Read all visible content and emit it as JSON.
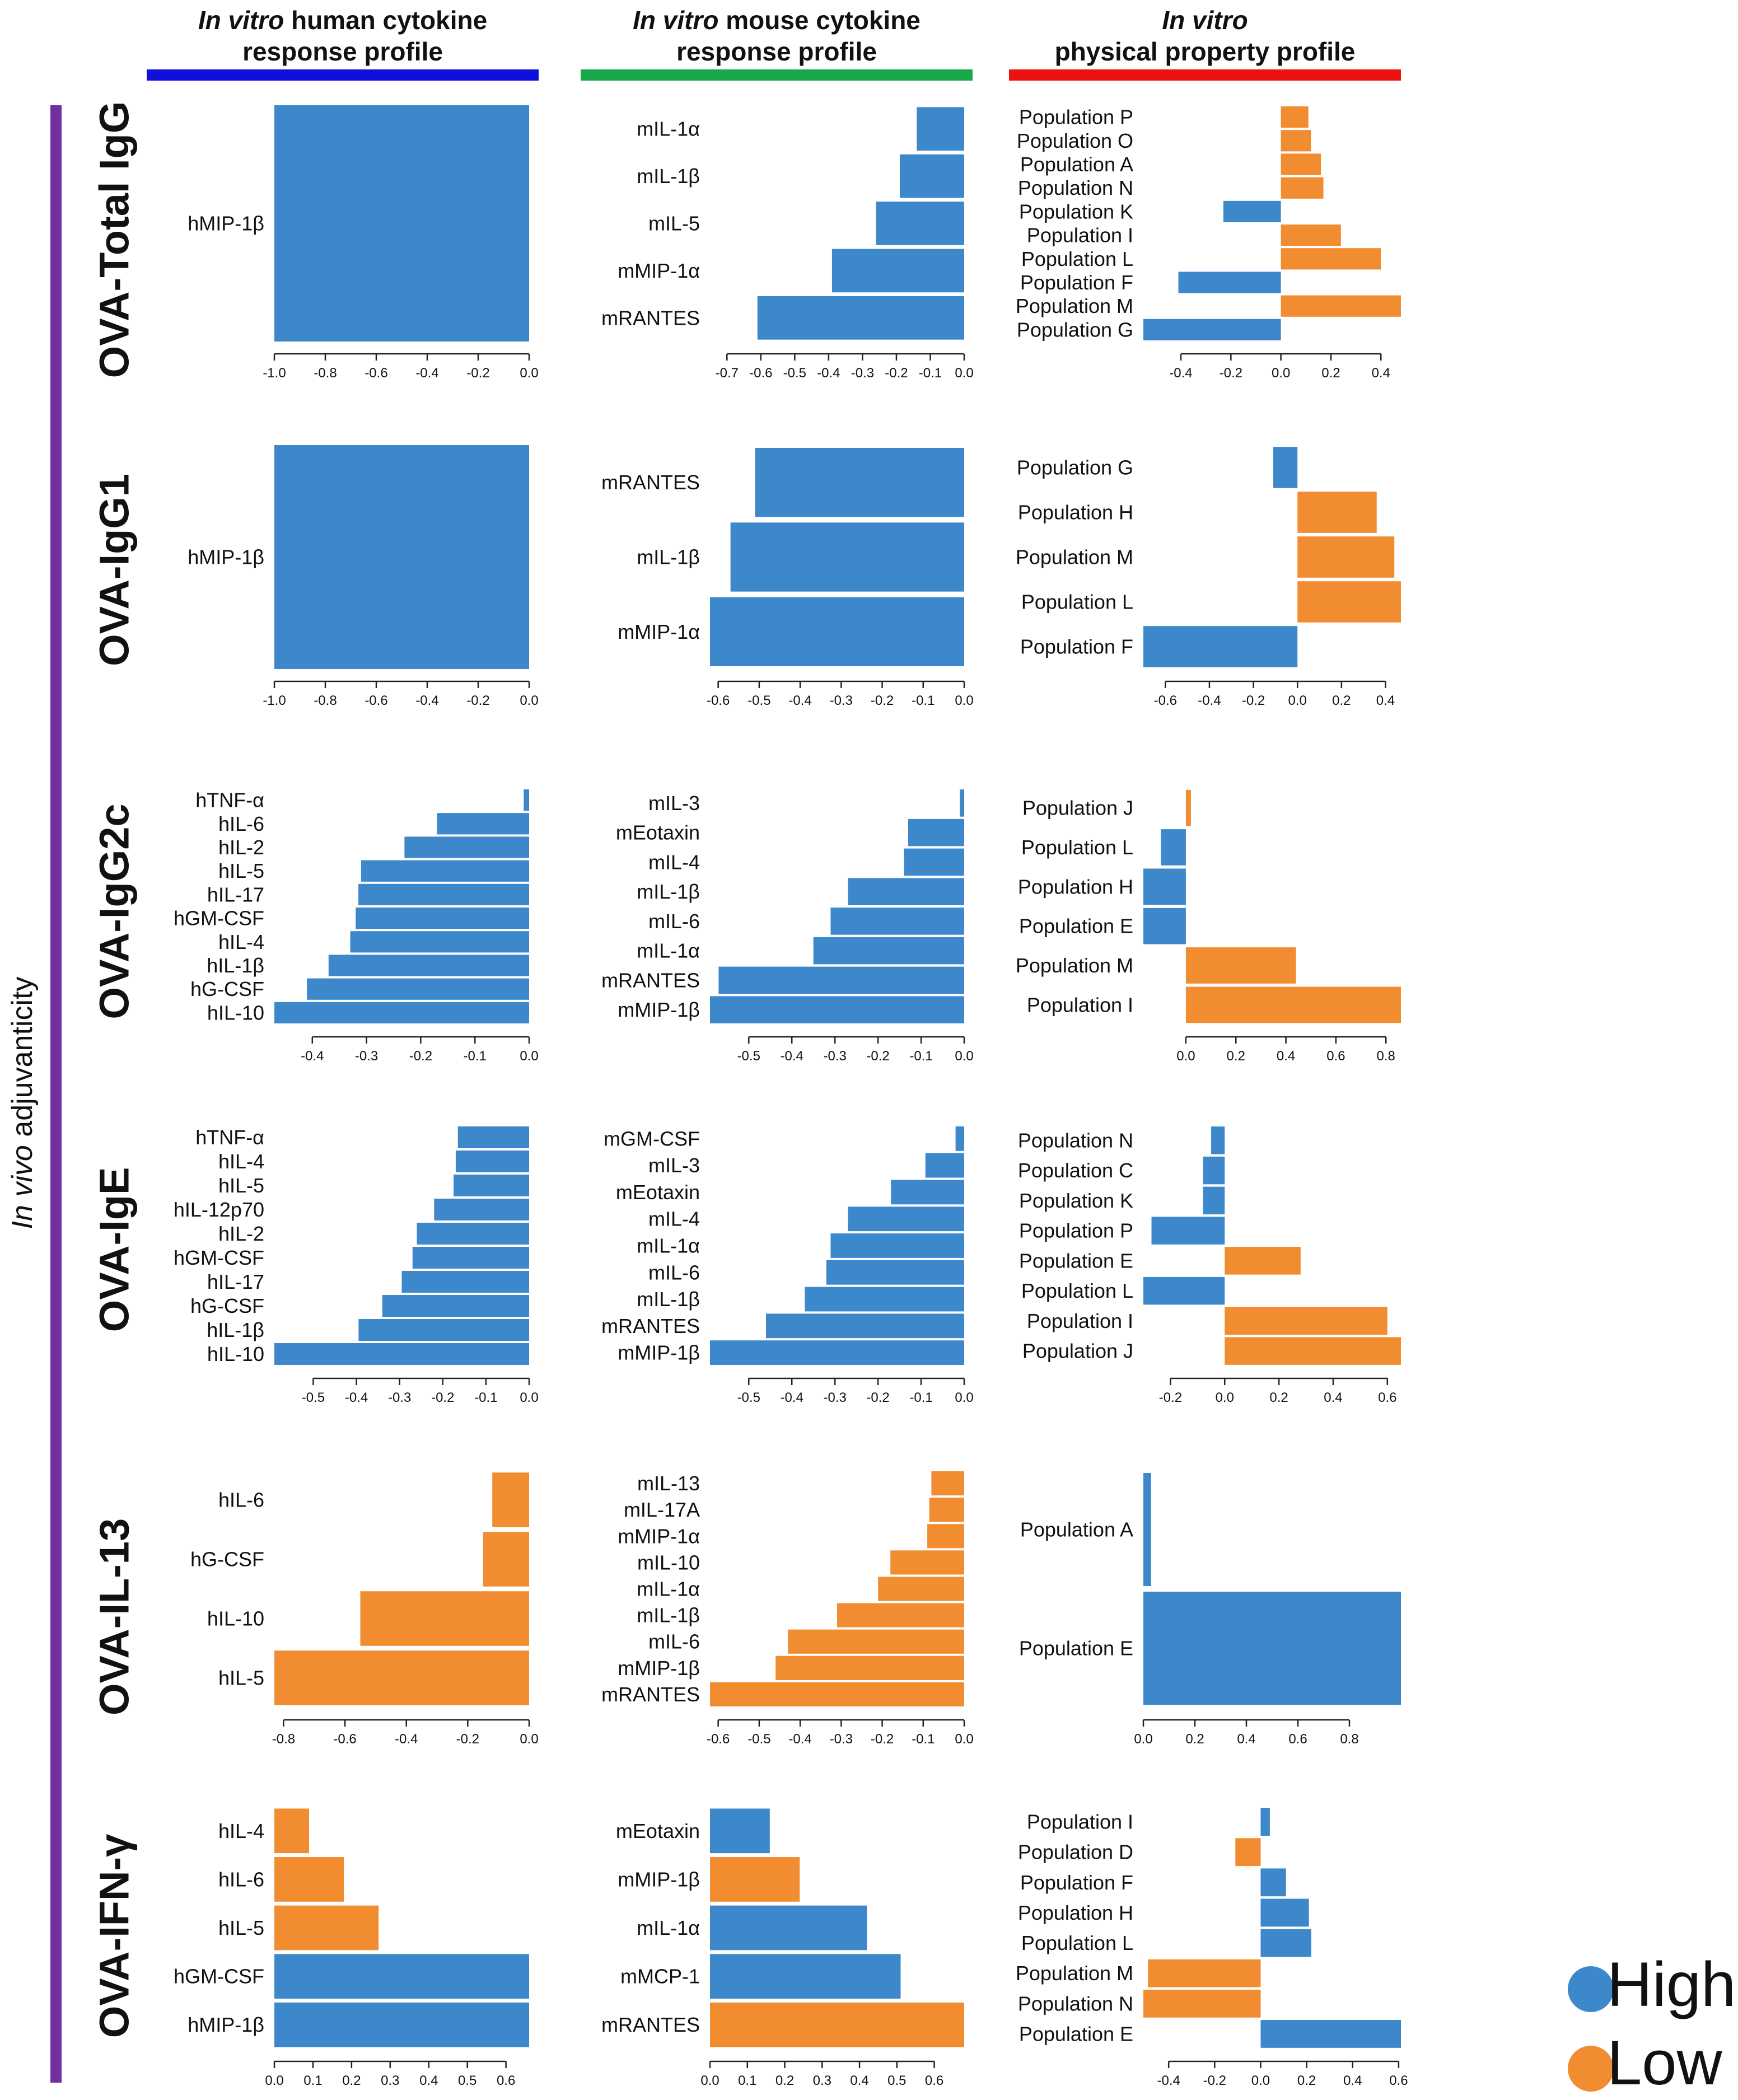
{
  "colors": {
    "high": "#3d88cb",
    "low": "#f28c30",
    "human": "#1010dd",
    "mouse": "#18a84a",
    "physical": "#ee1111",
    "adjuvanticity": "#7030a0"
  },
  "headers": {
    "human": {
      "italic": "In vitro",
      "rest": " human cytokine",
      "line2": "response profile"
    },
    "mouse": {
      "italic": "In vitro",
      "rest": " mouse cytokine",
      "line2": "response profile"
    },
    "physical": {
      "italic": "In vitro",
      "rest": "",
      "line2": "physical property profile"
    }
  },
  "side_label": {
    "italic": "In vivo",
    "rest": " adjuvanticity"
  },
  "row_labels": [
    "OVA-Total IgG",
    "OVA-IgG1",
    "OVA-IgG2c",
    "OVA-IgE",
    "OVA-IL-13",
    "OVA-IFN-γ"
  ],
  "legend": {
    "high": "High",
    "low": "Low"
  },
  "chart_data": [
    {
      "type": "bar",
      "orientation": "horizontal",
      "row": "OVA-Total IgG",
      "column": "human",
      "categories": [
        "hMIP-1β"
      ],
      "values": [
        -1.0
      ],
      "levels": [
        "high"
      ],
      "xlim": [
        -1.0,
        0.0
      ],
      "ticks": [
        "-1.0",
        "-0.8",
        "-0.6",
        "-0.4",
        "-0.2",
        "0.0"
      ]
    },
    {
      "type": "bar",
      "orientation": "horizontal",
      "row": "OVA-Total IgG",
      "column": "mouse",
      "categories": [
        "mIL-1α",
        "mIL-1β",
        "mIL-5",
        "mMIP-1α",
        "mRANTES"
      ],
      "values": [
        -0.14,
        -0.19,
        -0.26,
        -0.39,
        -0.61
      ],
      "levels": [
        "high",
        "high",
        "high",
        "high",
        "high"
      ],
      "xlim": [
        -0.75,
        0.0
      ],
      "ticks": [
        "-0.7",
        "-0.6",
        "-0.5",
        "-0.4",
        "-0.3",
        "-0.2",
        "-0.1",
        "0.0"
      ]
    },
    {
      "type": "bar",
      "orientation": "horizontal",
      "row": "OVA-Total IgG",
      "column": "physical",
      "categories": [
        "Population P",
        "Population O",
        "Population A",
        "Population N",
        "Population K",
        "Population I",
        "Population L",
        "Population F",
        "Population M",
        "Population G"
      ],
      "values": [
        0.11,
        0.12,
        0.16,
        0.17,
        -0.23,
        0.24,
        0.4,
        -0.41,
        0.48,
        -0.55
      ],
      "levels": [
        "low",
        "low",
        "low",
        "low",
        "high",
        "low",
        "low",
        "high",
        "low",
        "high"
      ],
      "xlim": [
        -0.55,
        0.48
      ],
      "ticks": [
        "-0.4",
        "-0.2",
        "0.0",
        "0.2",
        "0.4"
      ]
    },
    {
      "type": "bar",
      "orientation": "horizontal",
      "row": "OVA-IgG1",
      "column": "human",
      "categories": [
        "hMIP-1β"
      ],
      "values": [
        -1.0
      ],
      "levels": [
        "high"
      ],
      "xlim": [
        -1.0,
        0.0
      ],
      "ticks": [
        "-1.0",
        "-0.8",
        "-0.6",
        "-0.4",
        "-0.2",
        "0.0"
      ]
    },
    {
      "type": "bar",
      "orientation": "horizontal",
      "row": "OVA-IgG1",
      "column": "mouse",
      "categories": [
        "mRANTES",
        "mIL-1β",
        "mMIP-1α"
      ],
      "values": [
        -0.51,
        -0.57,
        -0.62
      ],
      "levels": [
        "high",
        "high",
        "high"
      ],
      "xlim": [
        -0.62,
        0.0
      ],
      "ticks": [
        "-0.6",
        "-0.5",
        "-0.4",
        "-0.3",
        "-0.2",
        "-0.1",
        "0.0"
      ]
    },
    {
      "type": "bar",
      "orientation": "horizontal",
      "row": "OVA-IgG1",
      "column": "physical",
      "categories": [
        "Population G",
        "Population H",
        "Population M",
        "Population L",
        "Population F"
      ],
      "values": [
        -0.11,
        0.36,
        0.44,
        0.47,
        -0.7
      ],
      "levels": [
        "high",
        "low",
        "low",
        "low",
        "high"
      ],
      "xlim": [
        -0.7,
        0.47
      ],
      "ticks": [
        "-0.6",
        "-0.4",
        "-0.2",
        "0.0",
        "0.2",
        "0.4"
      ]
    },
    {
      "type": "bar",
      "orientation": "horizontal",
      "row": "OVA-IgG2c",
      "column": "human",
      "categories": [
        "hTNF-α",
        "hIL-6",
        "hIL-2",
        "hIL-5",
        "hIL-17",
        "hGM-CSF",
        "hIL-4",
        "hIL-1β",
        "hG-CSF",
        "hIL-10"
      ],
      "values": [
        -0.01,
        -0.17,
        -0.23,
        -0.31,
        -0.315,
        -0.32,
        -0.33,
        -0.37,
        -0.41,
        -0.47
      ],
      "levels": [
        "high",
        "high",
        "high",
        "high",
        "high",
        "high",
        "high",
        "high",
        "high",
        "high"
      ],
      "xlim": [
        -0.47,
        0.0
      ],
      "ticks": [
        "-0.4",
        "-0.3",
        "-0.2",
        "-0.1",
        "0.0"
      ]
    },
    {
      "type": "bar",
      "orientation": "horizontal",
      "row": "OVA-IgG2c",
      "column": "mouse",
      "categories": [
        "mIL-3",
        "mEotaxin",
        "mIL-4",
        "mIL-1β",
        "mIL-6",
        "mIL-1α",
        "mRANTES",
        "mMIP-1β"
      ],
      "values": [
        -0.01,
        -0.13,
        -0.14,
        -0.27,
        -0.31,
        -0.35,
        -0.57,
        -0.59
      ],
      "levels": [
        "high",
        "high",
        "high",
        "high",
        "high",
        "high",
        "high",
        "high"
      ],
      "xlim": [
        -0.59,
        0.0
      ],
      "ticks": [
        "-0.5",
        "-0.4",
        "-0.3",
        "-0.2",
        "-0.1",
        "0.0"
      ]
    },
    {
      "type": "bar",
      "orientation": "horizontal",
      "row": "OVA-IgG2c",
      "column": "physical",
      "categories": [
        "Population J",
        "Population L",
        "Population H",
        "Population E",
        "Population M",
        "Population I"
      ],
      "values": [
        0.02,
        -0.1,
        -0.17,
        -0.17,
        0.44,
        0.86
      ],
      "levels": [
        "low",
        "high",
        "high",
        "high",
        "low",
        "low"
      ],
      "xlim": [
        -0.17,
        0.86
      ],
      "ticks": [
        "0.0",
        "0.2",
        "0.4",
        "0.6",
        "0.8"
      ]
    },
    {
      "type": "bar",
      "orientation": "horizontal",
      "row": "OVA-IgE",
      "column": "human",
      "categories": [
        "hTNF-α",
        "hIL-4",
        "hIL-5",
        "hIL-12p70",
        "hIL-2",
        "hGM-CSF",
        "hIL-17",
        "hG-CSF",
        "hIL-1β",
        "hIL-10"
      ],
      "values": [
        -0.165,
        -0.17,
        -0.175,
        -0.22,
        -0.26,
        -0.27,
        -0.295,
        -0.34,
        -0.395,
        -0.59
      ],
      "levels": [
        "high",
        "high",
        "high",
        "high",
        "high",
        "high",
        "high",
        "high",
        "high",
        "high"
      ],
      "xlim": [
        -0.59,
        0.0
      ],
      "ticks": [
        "-0.5",
        "-0.4",
        "-0.3",
        "-0.2",
        "-0.1",
        "0.0"
      ]
    },
    {
      "type": "bar",
      "orientation": "horizontal",
      "row": "OVA-IgE",
      "column": "mouse",
      "categories": [
        "mGM-CSF",
        "mIL-3",
        "mEotaxin",
        "mIL-4",
        "mIL-1α",
        "mIL-6",
        "mIL-1β",
        "mRANTES",
        "mMIP-1β"
      ],
      "values": [
        -0.02,
        -0.09,
        -0.17,
        -0.27,
        -0.31,
        -0.32,
        -0.37,
        -0.46,
        -0.59
      ],
      "levels": [
        "high",
        "high",
        "high",
        "high",
        "high",
        "high",
        "high",
        "high",
        "high"
      ],
      "xlim": [
        -0.59,
        0.0
      ],
      "ticks": [
        "-0.5",
        "-0.4",
        "-0.3",
        "-0.2",
        "-0.1",
        "0.0"
      ]
    },
    {
      "type": "bar",
      "orientation": "horizontal",
      "row": "OVA-IgE",
      "column": "physical",
      "categories": [
        "Population N",
        "Population C",
        "Population K",
        "Population P",
        "Population E",
        "Population L",
        "Population I",
        "Population J"
      ],
      "values": [
        -0.05,
        -0.08,
        -0.08,
        -0.27,
        0.28,
        -0.3,
        0.6,
        0.65
      ],
      "levels": [
        "high",
        "high",
        "high",
        "high",
        "low",
        "high",
        "low",
        "low"
      ],
      "xlim": [
        -0.3,
        0.65
      ],
      "ticks": [
        "-0.2",
        "0.0",
        "0.2",
        "0.4",
        "0.6"
      ]
    },
    {
      "type": "bar",
      "orientation": "horizontal",
      "row": "OVA-IL-13",
      "column": "human",
      "categories": [
        "hIL-6",
        "hG-CSF",
        "hIL-10",
        "hIL-5"
      ],
      "values": [
        -0.12,
        -0.15,
        -0.55,
        -0.83
      ],
      "levels": [
        "low",
        "low",
        "low",
        "low"
      ],
      "xlim": [
        -0.83,
        0.0
      ],
      "ticks": [
        "-0.8",
        "-0.6",
        "-0.4",
        "-0.2",
        "0.0"
      ]
    },
    {
      "type": "bar",
      "orientation": "horizontal",
      "row": "OVA-IL-13",
      "column": "mouse",
      "categories": [
        "mIL-13",
        "mIL-17A",
        "mMIP-1α",
        "mIL-10",
        "mIL-1α",
        "mIL-1β",
        "mIL-6",
        "mMIP-1β",
        "mRANTES"
      ],
      "values": [
        -0.08,
        -0.085,
        -0.09,
        -0.18,
        -0.21,
        -0.31,
        -0.43,
        -0.46,
        -0.62
      ],
      "levels": [
        "low",
        "low",
        "low",
        "low",
        "low",
        "low",
        "low",
        "low",
        "low"
      ],
      "xlim": [
        -0.62,
        0.0
      ],
      "ticks": [
        "-0.6",
        "-0.5",
        "-0.4",
        "-0.3",
        "-0.2",
        "-0.1",
        "0.0"
      ]
    },
    {
      "type": "bar",
      "orientation": "horizontal",
      "row": "OVA-IL-13",
      "column": "physical",
      "categories": [
        "Population A",
        "Population E"
      ],
      "values": [
        0.03,
        1.0
      ],
      "levels": [
        "high",
        "high"
      ],
      "xlim": [
        0.0,
        1.0
      ],
      "ticks": [
        "0.0",
        "0.2",
        "0.4",
        "0.6",
        "0.8"
      ]
    },
    {
      "type": "bar",
      "orientation": "horizontal",
      "row": "OVA-IFN-γ",
      "column": "human",
      "categories": [
        "hIL-4",
        "hIL-6",
        "hIL-5",
        "hGM-CSF",
        "hMIP-1β"
      ],
      "values": [
        0.09,
        0.18,
        0.27,
        0.66,
        0.66
      ],
      "levels": [
        "low",
        "low",
        "low",
        "high",
        "high"
      ],
      "xlim": [
        0.0,
        0.66
      ],
      "ticks": [
        "0.0",
        "0.1",
        "0.2",
        "0.3",
        "0.4",
        "0.5",
        "0.6"
      ]
    },
    {
      "type": "bar",
      "orientation": "horizontal",
      "row": "OVA-IFN-γ",
      "column": "mouse",
      "categories": [
        "mEotaxin",
        "mMIP-1β",
        "mIL-1α",
        "mMCP-1",
        "mRANTES"
      ],
      "values": [
        0.16,
        0.24,
        0.42,
        0.51,
        0.68
      ],
      "levels": [
        "high",
        "low",
        "high",
        "high",
        "low"
      ],
      "xlim": [
        0.0,
        0.68
      ],
      "ticks": [
        "0.0",
        "0.1",
        "0.2",
        "0.3",
        "0.4",
        "0.5",
        "0.6"
      ]
    },
    {
      "type": "bar",
      "orientation": "horizontal",
      "row": "OVA-IFN-γ",
      "column": "physical",
      "categories": [
        "Population I",
        "Population D",
        "Population F",
        "Population H",
        "Population L",
        "Population M",
        "Population N",
        "Population E"
      ],
      "values": [
        0.04,
        -0.11,
        0.11,
        0.21,
        0.22,
        -0.49,
        -0.51,
        0.61
      ],
      "levels": [
        "high",
        "low",
        "high",
        "high",
        "high",
        "low",
        "low",
        "high"
      ],
      "xlim": [
        -0.51,
        0.61
      ],
      "ticks": [
        "-0.4",
        "-0.2",
        "0.0",
        "0.2",
        "0.4",
        "0.6"
      ]
    }
  ]
}
